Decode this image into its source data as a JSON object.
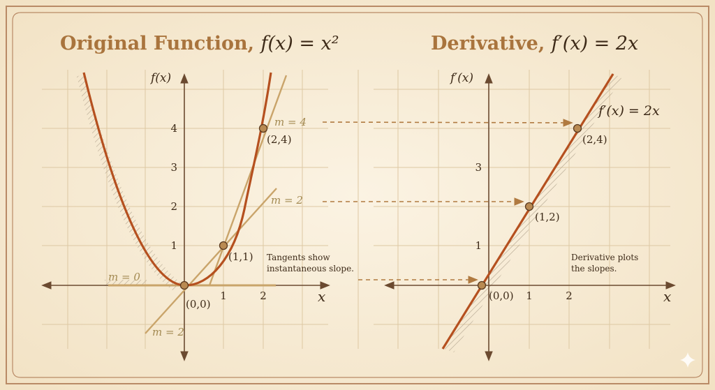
{
  "colors": {
    "background": "#f7ecd6",
    "frame": "#b98a66",
    "grid": "#ddc8a3",
    "axis": "#6b4a30",
    "curve": "#b5501f",
    "tangent": "#c9a46a",
    "arrow_dashed": "#b07a40",
    "point_fill": "#b98a52",
    "title": "#a9743d"
  },
  "left_panel": {
    "title_prefix": "Original Function, ",
    "title_math": "f(x) = x²",
    "y_axis_label": "f(x)",
    "x_axis_label": "x",
    "x_ticks": [
      "1",
      "2"
    ],
    "y_ticks": [
      "1",
      "2",
      "3",
      "4"
    ],
    "points": [
      {
        "label": "(0,0)",
        "x": 0,
        "y": 0
      },
      {
        "label": "(1,1)",
        "x": 1,
        "y": 1
      },
      {
        "label": "(2,4)",
        "x": 2,
        "y": 4
      }
    ],
    "slope_labels": [
      {
        "text": "m = 0",
        "slope": 0
      },
      {
        "text": "m = 2",
        "slope": 2
      },
      {
        "text": "m = 4",
        "slope": 4
      },
      {
        "text": "m = 2",
        "slope": 2
      }
    ],
    "note_line1": "Tangents show",
    "note_line2": "instantaneous slope."
  },
  "right_panel": {
    "title_prefix": "Derivative, ",
    "title_math": "f′(x) = 2x",
    "y_axis_label": "f′(x)",
    "x_axis_label": "x",
    "x_ticks": [
      "1",
      "2"
    ],
    "y_ticks": [
      "1",
      "3"
    ],
    "function_label": "f′(x) = 2x",
    "points": [
      {
        "label": "(0,0)",
        "x": 0,
        "y": 0
      },
      {
        "label": "(1,2)",
        "x": 1,
        "y": 2
      },
      {
        "label": "(2,4)",
        "x": 2,
        "y": 4
      }
    ],
    "note_line1": "Derivative plots",
    "note_line2": "the slopes."
  }
}
